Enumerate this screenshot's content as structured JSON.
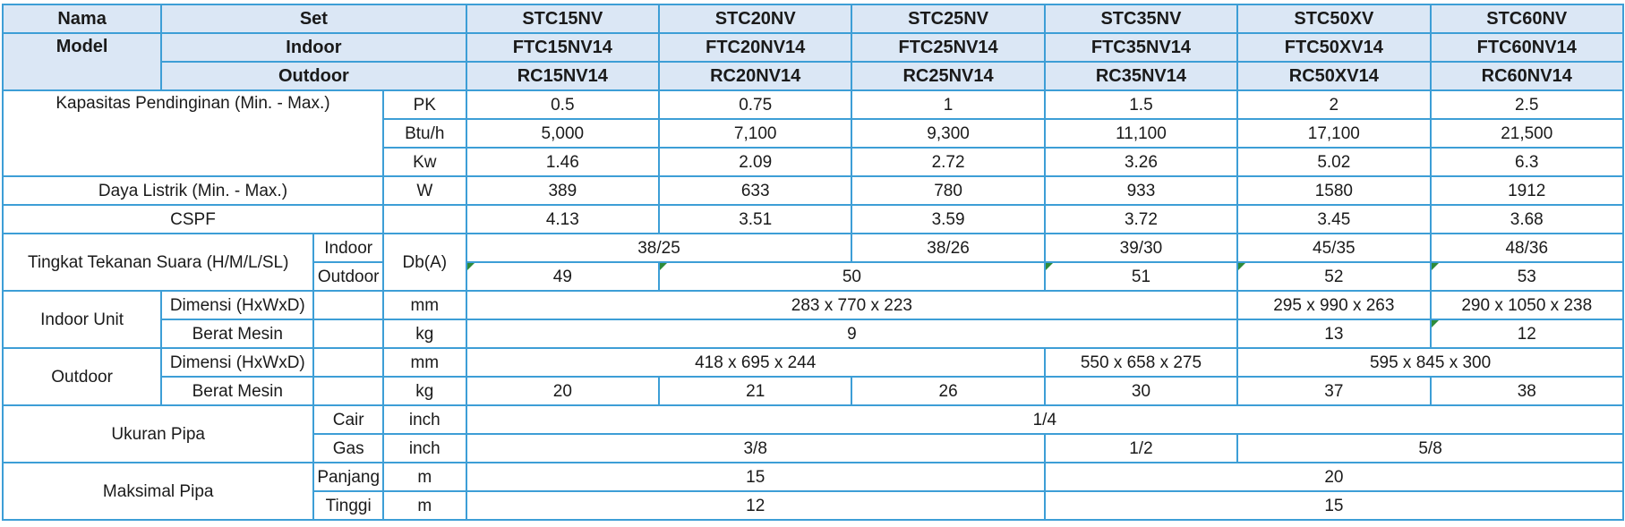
{
  "header": {
    "nama": "Nama",
    "model": "Model",
    "set": "Set",
    "indoor": "Indoor",
    "outdoor": "Outdoor",
    "sets": [
      "STC15NV",
      "STC20NV",
      "STC25NV",
      "STC35NV",
      "STC50XV",
      "STC60NV"
    ],
    "indoor_models": [
      "FTC15NV14",
      "FTC20NV14",
      "FTC25NV14",
      "FTC35NV14",
      "FTC50XV14",
      "FTC60NV14"
    ],
    "outdoor_models": [
      "RC15NV14",
      "RC20NV14",
      "RC25NV14",
      "RC35NV14",
      "RC50XV14",
      "RC60NV14"
    ]
  },
  "capacity": {
    "label": "Kapasitas Pendinginan (Min. - Max.)",
    "pk_unit": "PK",
    "pk": [
      "0.5",
      "0.75",
      "1",
      "1.5",
      "2",
      "2.5"
    ],
    "btu_unit": "Btu/h",
    "btu": [
      "5,000",
      "7,100",
      "9,300",
      "11,100",
      "17,100",
      "21,500"
    ],
    "kw_unit": "Kw",
    "kw": [
      "1.46",
      "2.09",
      "2.72",
      "3.26",
      "5.02",
      "6.3"
    ]
  },
  "power": {
    "label": "Daya Listrik (Min. - Max.)",
    "unit": "W",
    "values": [
      "389",
      "633",
      "780",
      "933",
      "1580",
      "1912"
    ]
  },
  "cspf": {
    "label": "CSPF",
    "values": [
      "4.13",
      "3.51",
      "3.59",
      "3.72",
      "3.45",
      "3.68"
    ]
  },
  "noise": {
    "label": "Tingkat Tekanan Suara (H/M/L/SL)",
    "indoor_label": "Indoor",
    "outdoor_label": "Outdoor",
    "unit": "Db(A)",
    "indoor_15_20": "38/25",
    "indoor_25": "38/26",
    "indoor_35": "39/30",
    "indoor_50": "45/35",
    "indoor_60": "48/36",
    "outdoor_15": "49",
    "outdoor_20_25": "50",
    "outdoor_35": "51",
    "outdoor_50": "52",
    "outdoor_60": "53"
  },
  "indoor_unit": {
    "label": "Indoor Unit",
    "dim_label": "Dimensi (HxWxD)",
    "dim_unit": "mm",
    "dim_15_35": "283 x 770 x 223",
    "dim_50": "295 x 990 x 263",
    "dim_60": "290 x 1050 x 238",
    "weight_label": "Berat Mesin",
    "weight_unit": "kg",
    "weight_15_35": "9",
    "weight_50": "13",
    "weight_60": "12"
  },
  "outdoor_unit": {
    "label": "Outdoor",
    "dim_label": "Dimensi (HxWxD)",
    "dim_unit": "mm",
    "dim_15_25": "418 x 695 x 244",
    "dim_35": "550 x 658 x 275",
    "dim_50_60": "595 x 845 x 300",
    "weight_label": "Berat Mesin",
    "weight_unit": "kg",
    "weights": [
      "20",
      "21",
      "26",
      "30",
      "37",
      "38"
    ]
  },
  "pipe": {
    "label": "Ukuran Pipa",
    "cair_label": "Cair",
    "cair_unit": "inch",
    "cair_all": "1/4",
    "gas_label": "Gas",
    "gas_unit": "inch",
    "gas_15_25": "3/8",
    "gas_35": "1/2",
    "gas_50_60": "5/8"
  },
  "max_pipe": {
    "label": "Maksimal Pipa",
    "panjang_label": "Panjang",
    "panjang_unit": "m",
    "panjang_15_25": "15",
    "panjang_35_60": "20",
    "tinggi_label": "Tinggi",
    "tinggi_unit": "m",
    "tinggi_15_25": "12",
    "tinggi_35_60": "15"
  }
}
